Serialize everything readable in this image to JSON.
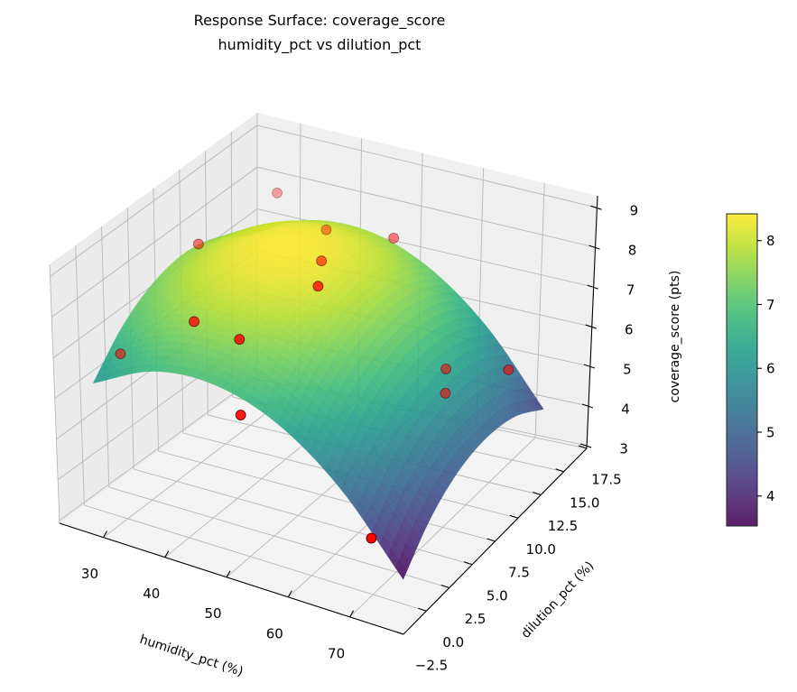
{
  "chart_data": {
    "type": "surface3d",
    "title": [
      "Response Surface: coverage_score",
      "humidity_pct vs dilution_pct"
    ],
    "xlabel": "humidity_pct (%)",
    "ylabel": "dilution_pct (%)",
    "zlabel": "coverage_score (pts)",
    "xlim": [
      22.9,
      78.7
    ],
    "ylim": [
      -2.5,
      17.5
    ],
    "zlim": [
      2.93,
      9.3
    ],
    "xticks": [
      30,
      40,
      50,
      60,
      70
    ],
    "yticks": [
      "-2.5",
      "0.0",
      "2.5",
      "5.0",
      "7.5",
      "10.0",
      "12.5",
      "15.0",
      "17.5"
    ],
    "zticks": [
      3,
      4,
      5,
      6,
      7,
      8,
      9
    ],
    "grid": true,
    "colormap": "viridis",
    "surface": {
      "x": [
        25,
        35,
        45,
        55,
        65,
        75
      ],
      "y": [
        0,
        3,
        6,
        9,
        12,
        15
      ],
      "z": [
        [
          6.02,
          6.77,
          6.89,
          6.4,
          5.28,
          3.53
        ],
        [
          6.86,
          7.6,
          7.73,
          7.23,
          6.11,
          4.37
        ],
        [
          7.35,
          8.1,
          8.23,
          7.73,
          6.61,
          4.87
        ],
        [
          7.52,
          8.27,
          8.39,
          7.89,
          6.78,
          5.03
        ],
        [
          7.35,
          8.1,
          8.23,
          7.73,
          6.61,
          4.87
        ],
        [
          6.86,
          7.6,
          7.73,
          7.23,
          6.11,
          4.37
        ]
      ]
    },
    "points": [
      [
        30.4,
        15,
        8.1
      ],
      [
        30.1,
        7.5,
        8.25
      ],
      [
        38.5,
        15,
        7.5
      ],
      [
        46,
        10,
        8.0
      ],
      [
        49.6,
        15,
        7.7
      ],
      [
        53.7,
        5,
        8.7
      ],
      [
        41.8,
        0,
        8.3
      ],
      [
        49.1,
        0,
        8.2
      ],
      [
        25.4,
        2.5,
        6.3
      ],
      [
        52.3,
        -2,
        6.9
      ],
      [
        58.6,
        15,
        4.8
      ],
      [
        58.6,
        15,
        4.2
      ],
      [
        65.9,
        17,
        4.6
      ],
      [
        69.9,
        0,
        4.3
      ]
    ],
    "point_color": "#ff0000",
    "colorbar": {
      "range": [
        3.53,
        8.42
      ],
      "ticks": [
        4,
        5,
        6,
        7,
        8
      ]
    }
  }
}
